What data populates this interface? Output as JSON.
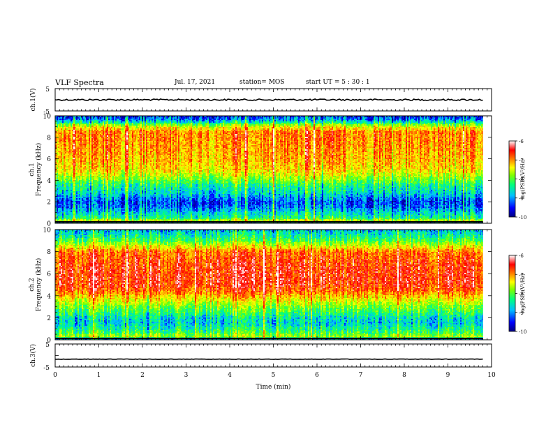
{
  "header": {
    "title": "VLF Spectra",
    "date": "Jul. 17, 2021",
    "station": "station= MOS",
    "start": "start  UT  =   5  : 30 : 1"
  },
  "chart_data": [
    {
      "type": "line",
      "panel": "ch1 waveform",
      "ylabel": "ch.1(V)",
      "yticks": [
        "5",
        "-5"
      ],
      "ylim": [
        -5,
        5
      ],
      "xlim": [
        0,
        10
      ],
      "series": [
        {
          "x": [
            0,
            9.8
          ],
          "y": [
            0.0,
            0.0
          ]
        }
      ]
    },
    {
      "type": "heatmap",
      "panel": "ch1 spectrogram",
      "ylabel": "ch.1 Frequency (kHz)",
      "ylabel_line1": "ch.1",
      "ylabel_line2": "Frequency (kHz)",
      "xlim": [
        0,
        10
      ],
      "ylim": [
        0,
        10
      ],
      "yticks": [
        "0",
        "2",
        "4",
        "6",
        "8",
        "10"
      ],
      "data_xmax": 9.8,
      "colorbar": {
        "label": "log(PSD)(V²/Hz)",
        "ticks": [
          "-6",
          "-7",
          "-8",
          "-9",
          "-10"
        ],
        "range": [
          -10,
          -6
        ]
      },
      "band_profile": [
        [
          0.0,
          -9.4
        ],
        [
          0.2,
          -7.6
        ],
        [
          0.5,
          -8.5
        ],
        [
          1.0,
          -8.8
        ],
        [
          1.5,
          -9.2
        ],
        [
          2.0,
          -9.35
        ],
        [
          2.5,
          -9.0
        ],
        [
          3.0,
          -8.7
        ],
        [
          3.5,
          -8.5
        ],
        [
          4.0,
          -8.1
        ],
        [
          4.5,
          -7.7
        ],
        [
          5.0,
          -7.4
        ],
        [
          6.0,
          -7.2
        ],
        [
          7.0,
          -7.1
        ],
        [
          8.0,
          -7.0
        ],
        [
          8.5,
          -7.0
        ],
        [
          9.0,
          -7.6
        ],
        [
          9.3,
          -8.4
        ],
        [
          9.6,
          -9.1
        ],
        [
          10.0,
          -9.4
        ]
      ]
    },
    {
      "type": "heatmap",
      "panel": "ch2 spectrogram",
      "ylabel": "ch.2 Frequency (kHz)",
      "ylabel_line1": "ch.2",
      "ylabel_line2": "Frequency (kHz)",
      "xlim": [
        0,
        10
      ],
      "ylim": [
        0,
        10
      ],
      "yticks": [
        "0",
        "2",
        "4",
        "6",
        "8",
        "10"
      ],
      "data_xmax": 9.8,
      "colorbar": {
        "label": "log(PSD)(V²/Hz)",
        "ticks": [
          "-6",
          "-7",
          "-8",
          "-9",
          "-10"
        ],
        "range": [
          -10,
          -6
        ]
      },
      "band_profile": [
        [
          0.0,
          -9.2
        ],
        [
          0.3,
          -7.8
        ],
        [
          0.6,
          -8.2
        ],
        [
          1.0,
          -8.5
        ],
        [
          1.5,
          -8.8
        ],
        [
          2.0,
          -8.7
        ],
        [
          2.5,
          -8.3
        ],
        [
          3.0,
          -8.0
        ],
        [
          3.5,
          -7.6
        ],
        [
          4.0,
          -7.2
        ],
        [
          4.5,
          -6.8
        ],
        [
          5.0,
          -6.6
        ],
        [
          6.0,
          -6.6
        ],
        [
          7.0,
          -6.7
        ],
        [
          8.0,
          -6.9
        ],
        [
          8.5,
          -7.6
        ],
        [
          9.0,
          -8.2
        ],
        [
          9.5,
          -8.6
        ],
        [
          10.0,
          -8.9
        ]
      ]
    },
    {
      "type": "line",
      "panel": "ch3 waveform",
      "ylabel": "ch.3(V)",
      "yticks": [
        "5",
        "-5"
      ],
      "ylim": [
        -5,
        5
      ],
      "xlim": [
        0,
        10
      ],
      "xlabel": "Time  (min)",
      "xticks": [
        "0",
        "1",
        "2",
        "3",
        "4",
        "5",
        "6",
        "7",
        "8",
        "9",
        "10"
      ],
      "series": [
        {
          "x": [
            0,
            9.8
          ],
          "y": [
            -1.6,
            -1.6
          ]
        }
      ]
    }
  ],
  "colors": {
    "colormap": [
      "#000080",
      "#0000ff",
      "#00c0ff",
      "#00ff80",
      "#80ff00",
      "#ffff00",
      "#ff8000",
      "#ff0000",
      "#ffffff"
    ]
  }
}
